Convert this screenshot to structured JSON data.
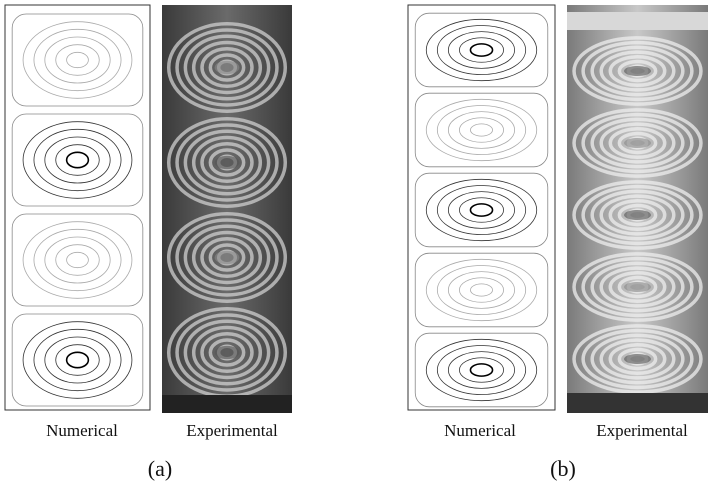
{
  "panels": [
    {
      "numerical": "Numerical",
      "experimental": "Experimental",
      "label": "(a)"
    },
    {
      "numerical": "Numerical",
      "experimental": "Experimental",
      "label": "(b)"
    }
  ]
}
